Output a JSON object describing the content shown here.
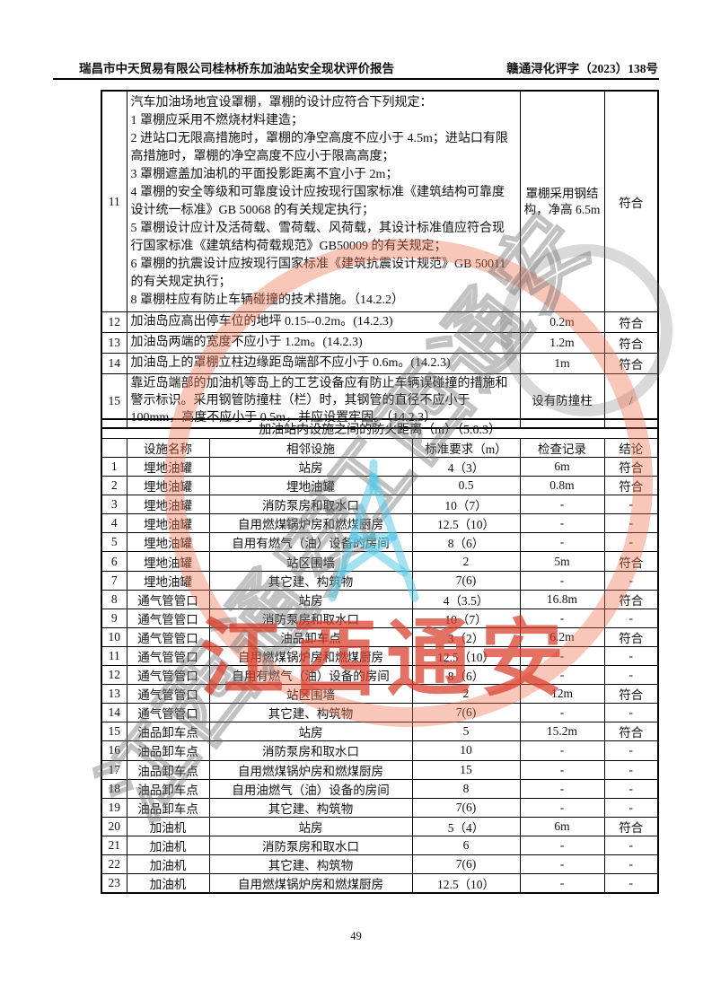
{
  "header": {
    "left": "瑞昌市中天贸易有限公司桂林桥东加油站安全现状评价报告",
    "right": "赣通浔化评字（2023）138号"
  },
  "checklist_table": {
    "rows": [
      {
        "no": "11",
        "requirement": "汽车加油场地宜设罩棚，罩棚的设计应符合下列规定：\n1 罩棚应采用不燃烧材料建造；\n2 进站口无限高措施时，罩棚的净空高度不应小于 4.5m；进站口有限高措施时，罩棚的净空高度不应小于限高高度；\n3 罩棚遮盖加油机的平面投影距离不宜小于 2m；\n4 罩棚的安全等级和可靠度设计应按现行国家标准《建筑结构可靠度设计统一标准》GB 50068 的有关规定执行；\n5 罩棚设计应计及活荷载、雪荷载、风荷载，其设计标准值应符合现行国家标准《建筑结构荷载规范》GB50009 的有关规定；\n6 罩棚的抗震设计应按现行国家标准《建筑抗震设计规范》GB 50011 的有关规定执行；\n8 罩棚柱应有防止车辆碰撞的技术措施。（14.2.2）",
        "record": "罩棚采用钢结构，净高 6.5m",
        "conclusion": "符合"
      },
      {
        "no": "12",
        "requirement": "加油岛应高出停车位的地坪 0.15--0.2m。(14.2.3)",
        "record": "0.2m",
        "conclusion": "符合"
      },
      {
        "no": "13",
        "requirement": "加油岛两端的宽度不应小于 1.2m。(14.2.3)",
        "record": "1.2m",
        "conclusion": "符合"
      },
      {
        "no": "14",
        "requirement": "加油岛上的罩棚立柱边缘距岛端部不应小于 0.6m。(14.2.3)",
        "record": "1m",
        "conclusion": "符合"
      },
      {
        "no": "15",
        "requirement": "靠近岛端部的加油机等岛上的工艺设备应有防止车辆误碰撞的措施和警示标识。采用钢管防撞柱（栏）时，其钢管的直径不应小于 100mm，高度不应小于 0.5m，并应设置牢固。（14.2.3）",
        "record": "设有防撞柱",
        "conclusion": "/"
      }
    ]
  },
  "fire_distance_table": {
    "title": "加油站内设施之间的防火距离（m）（5.0.3）",
    "headers": {
      "no": "",
      "facility": "设施名称",
      "adjacent": "相邻设施",
      "requirement": "标准要求（m）",
      "record": "检查记录",
      "conclusion": "结论"
    },
    "rows": [
      {
        "no": "1",
        "facility": "埋地油罐",
        "adjacent": "站房",
        "requirement": "4（3）",
        "record": "6m",
        "conclusion": "符合"
      },
      {
        "no": "2",
        "facility": "埋地油罐",
        "adjacent": "埋地油罐",
        "requirement": "0.5",
        "record": "0.8m",
        "conclusion": "符合"
      },
      {
        "no": "3",
        "facility": "埋地油罐",
        "adjacent": "消防泵房和取水口",
        "requirement": "10（7）",
        "record": "-",
        "conclusion": "-"
      },
      {
        "no": "4",
        "facility": "埋地油罐",
        "adjacent": "自用燃煤锅炉房和燃煤厨房",
        "requirement": "12.5（10）",
        "record": "-",
        "conclusion": "-"
      },
      {
        "no": "5",
        "facility": "埋地油罐",
        "adjacent": "自用有燃气（油）设备的房间",
        "requirement": "8（6）",
        "record": "-",
        "conclusion": "-"
      },
      {
        "no": "6",
        "facility": "埋地油罐",
        "adjacent": "站区围墙",
        "requirement": "2",
        "record": "5m",
        "conclusion": "符合"
      },
      {
        "no": "7",
        "facility": "埋地油罐",
        "adjacent": "其它建、构筑物",
        "requirement": "7(6)",
        "record": "-",
        "conclusion": "-"
      },
      {
        "no": "8",
        "facility": "通气管管口",
        "adjacent": "站房",
        "requirement": "4（3.5）",
        "record": "16.8m",
        "conclusion": "符合"
      },
      {
        "no": "9",
        "facility": "通气管管口",
        "adjacent": "消防泵房和取水口",
        "requirement": "10（7）",
        "record": "-",
        "conclusion": "-"
      },
      {
        "no": "10",
        "facility": "通气管管口",
        "adjacent": "油品卸车点",
        "requirement": "3（2）",
        "record": "6.2m",
        "conclusion": "符合"
      },
      {
        "no": "11",
        "facility": "通气管管口",
        "adjacent": "自用燃煤锅炉房和燃煤厨房",
        "requirement": "12.5（10）",
        "record": "-",
        "conclusion": "-"
      },
      {
        "no": "12",
        "facility": "通气管管口",
        "adjacent": "自用有燃气（油）设备的房间",
        "requirement": "8（6）",
        "record": "-",
        "conclusion": "-"
      },
      {
        "no": "13",
        "facility": "通气管管口",
        "adjacent": "站区围墙",
        "requirement": "2",
        "record": "12m",
        "conclusion": "符合"
      },
      {
        "no": "14",
        "facility": "通气管管口",
        "adjacent": "其它建、构筑物",
        "requirement": "7(6)",
        "record": "-",
        "conclusion": "-"
      },
      {
        "no": "15",
        "facility": "油品卸车点",
        "adjacent": "站房",
        "requirement": "5",
        "record": "15.2m",
        "conclusion": "符合"
      },
      {
        "no": "16",
        "facility": "油品卸车点",
        "adjacent": "消防泵房和取水口",
        "requirement": "10",
        "record": "-",
        "conclusion": "-"
      },
      {
        "no": "17",
        "facility": "油品卸车点",
        "adjacent": "自用燃煤锅炉房和燃煤厨房",
        "requirement": "15",
        "record": "-",
        "conclusion": "-"
      },
      {
        "no": "18",
        "facility": "油品卸车点",
        "adjacent": "自用油燃气（油）设备的房间",
        "requirement": "8",
        "record": "-",
        "conclusion": "-"
      },
      {
        "no": "19",
        "facility": "油品卸车点",
        "adjacent": "其它建、构筑物",
        "requirement": "7(6)",
        "record": "-",
        "conclusion": "-"
      },
      {
        "no": "20",
        "facility": "加油机",
        "adjacent": "站房",
        "requirement": "5（4）",
        "record": "6m",
        "conclusion": "符合"
      },
      {
        "no": "21",
        "facility": "加油机",
        "adjacent": "消防泵房和取水口",
        "requirement": "6",
        "record": "-",
        "conclusion": "-"
      },
      {
        "no": "22",
        "facility": "加油机",
        "adjacent": "其它建、构筑物",
        "requirement": "7(6)",
        "record": "-",
        "conclusion": "-"
      },
      {
        "no": "23",
        "facility": "加油机",
        "adjacent": "自用燃煤锅炉房和燃煤厨房",
        "requirement": "12.5（10）",
        "record": "-",
        "conclusion": "-"
      }
    ]
  },
  "footer": {
    "page_number": "49"
  },
  "watermark": {
    "red_text": "江西通安",
    "diagonal_text": "江西通安",
    "red_color": "#d83c2a",
    "ring_color": "#f07052",
    "tower_color": "#59c8e6"
  }
}
